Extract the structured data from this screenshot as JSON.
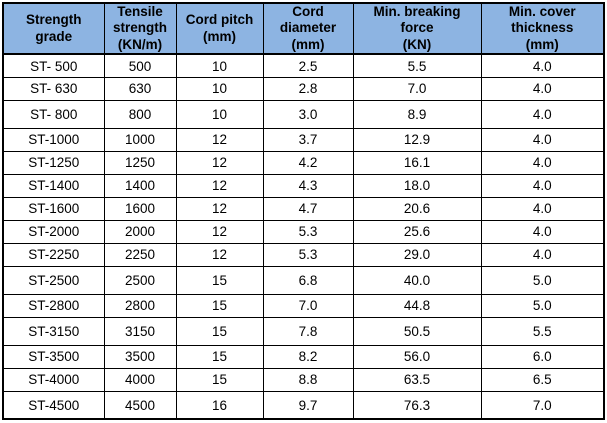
{
  "table": {
    "columns": [
      "Strength\ngrade",
      "Tensile\nstrength\n(KN/m)",
      "Cord pitch\n(mm)",
      "Cord\ndiameter\n(mm)",
      "Min. breaking\nforce\n(KN)",
      "Min. cover\nthickness\n(mm)"
    ],
    "rows": [
      [
        "ST- 500",
        "500",
        "10",
        "2.5",
        "5.5",
        "4.0"
      ],
      [
        "ST- 630",
        "630",
        "10",
        "2.8",
        "7.0",
        "4.0"
      ],
      [
        "ST- 800",
        "800",
        "10",
        "3.0",
        "8.9",
        "4.0"
      ],
      [
        "ST-1000",
        "1000",
        "12",
        "3.7",
        "12.9",
        "4.0"
      ],
      [
        "ST-1250",
        "1250",
        "12",
        "4.2",
        "16.1",
        "4.0"
      ],
      [
        "ST-1400",
        "1400",
        "12",
        "4.3",
        "18.0",
        "4.0"
      ],
      [
        "ST-1600",
        "1600",
        "12",
        "4.7",
        "20.6",
        "4.0"
      ],
      [
        "ST-2000",
        "2000",
        "12",
        "5.3",
        "25.6",
        "4.0"
      ],
      [
        "ST-2250",
        "2250",
        "12",
        "5.3",
        "29.0",
        "4.0"
      ],
      [
        "ST-2500",
        "2500",
        "15",
        "6.8",
        "40.0",
        "5.0"
      ],
      [
        "ST-2800",
        "2800",
        "15",
        "7.0",
        "44.8",
        "5.0"
      ],
      [
        "ST-3150",
        "3150",
        "15",
        "7.8",
        "50.5",
        "5.5"
      ],
      [
        "ST-3500",
        "3500",
        "15",
        "8.2",
        "56.0",
        "6.0"
      ],
      [
        "ST-4000",
        "4000",
        "15",
        "8.8",
        "63.5",
        "6.5"
      ],
      [
        "ST-4500",
        "4500",
        "16",
        "9.7",
        "76.3",
        "7.0"
      ]
    ]
  },
  "chart_data": {
    "type": "table",
    "columns": [
      "Strength grade",
      "Tensile strength (KN/m)",
      "Cord pitch (mm)",
      "Cord diameter (mm)",
      "Min. breaking force (KN)",
      "Min. cover thickness (mm)"
    ],
    "rows": [
      [
        "ST- 500",
        500,
        10,
        2.5,
        5.5,
        4.0
      ],
      [
        "ST- 630",
        630,
        10,
        2.8,
        7.0,
        4.0
      ],
      [
        "ST- 800",
        800,
        10,
        3.0,
        8.9,
        4.0
      ],
      [
        "ST-1000",
        1000,
        12,
        3.7,
        12.9,
        4.0
      ],
      [
        "ST-1250",
        1250,
        12,
        4.2,
        16.1,
        4.0
      ],
      [
        "ST-1400",
        1400,
        12,
        4.3,
        18.0,
        4.0
      ],
      [
        "ST-1600",
        1600,
        12,
        4.7,
        20.6,
        4.0
      ],
      [
        "ST-2000",
        2000,
        12,
        5.3,
        25.6,
        4.0
      ],
      [
        "ST-2250",
        2250,
        12,
        5.3,
        29.0,
        4.0
      ],
      [
        "ST-2500",
        2500,
        15,
        6.8,
        40.0,
        5.0
      ],
      [
        "ST-2800",
        2800,
        15,
        7.0,
        44.8,
        5.0
      ],
      [
        "ST-3150",
        3150,
        15,
        7.8,
        50.5,
        5.5
      ],
      [
        "ST-3500",
        3500,
        15,
        8.2,
        56.0,
        6.0
      ],
      [
        "ST-4000",
        4000,
        15,
        8.8,
        63.5,
        6.5
      ],
      [
        "ST-4500",
        4500,
        16,
        9.7,
        76.3,
        7.0
      ]
    ]
  },
  "colors": {
    "header_bg": "#8DB4E2",
    "border": "#000000",
    "text": "#000000",
    "background": "#FFFFFF"
  }
}
